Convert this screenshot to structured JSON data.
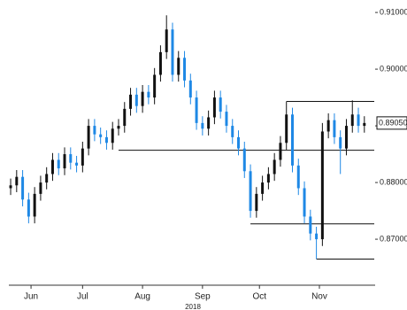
{
  "chart_data": {
    "type": "candlestick",
    "xlabel": "2018",
    "open": [
      0.879,
      0.8795,
      0.881,
      0.877,
      0.874,
      0.878,
      0.88,
      0.8815,
      0.884,
      0.8825,
      0.885,
      0.8835,
      0.883,
      0.886,
      0.89,
      0.8885,
      0.888,
      0.887,
      0.8895,
      0.89,
      0.893,
      0.8955,
      0.8935,
      0.896,
      0.895,
      0.899,
      0.903,
      0.907,
      0.899,
      0.902,
      0.898,
      0.895,
      0.8905,
      0.8895,
      0.8915,
      0.895,
      0.8925,
      0.89,
      0.888,
      0.886,
      0.882,
      0.875,
      0.878,
      0.88,
      0.8815,
      0.884,
      0.887,
      0.892,
      0.883,
      0.879,
      0.874,
      0.871,
      0.87,
      0.889,
      0.891,
      0.888,
      0.886,
      0.89,
      0.892,
      0.89
    ],
    "high": [
      0.8807,
      0.8822,
      0.8822,
      0.8782,
      0.8792,
      0.8812,
      0.8827,
      0.8852,
      0.8852,
      0.8862,
      0.8862,
      0.8847,
      0.8872,
      0.8912,
      0.8912,
      0.8897,
      0.8892,
      0.8907,
      0.8912,
      0.8942,
      0.8967,
      0.8967,
      0.8972,
      0.8972,
      0.9002,
      0.9042,
      0.9095,
      0.9082,
      0.9032,
      0.9032,
      0.8992,
      0.8962,
      0.8917,
      0.8927,
      0.8962,
      0.8962,
      0.8937,
      0.8912,
      0.8892,
      0.8872,
      0.8832,
      0.8792,
      0.8812,
      0.8827,
      0.8852,
      0.8882,
      0.8943,
      0.8932,
      0.8842,
      0.8802,
      0.8752,
      0.8722,
      0.8905,
      0.8922,
      0.8922,
      0.8892,
      0.8912,
      0.8945,
      0.8932,
      0.8917
    ],
    "low": [
      0.8778,
      0.8783,
      0.8758,
      0.8728,
      0.8728,
      0.8768,
      0.8788,
      0.8803,
      0.8813,
      0.8813,
      0.8823,
      0.8818,
      0.8818,
      0.8848,
      0.8873,
      0.8868,
      0.8858,
      0.8858,
      0.8883,
      0.8888,
      0.8918,
      0.8923,
      0.8923,
      0.8938,
      0.8938,
      0.8978,
      0.9018,
      0.8978,
      0.8978,
      0.8968,
      0.8938,
      0.8893,
      0.8883,
      0.8883,
      0.8903,
      0.8913,
      0.8888,
      0.8868,
      0.8848,
      0.8808,
      0.8738,
      0.8738,
      0.8768,
      0.8788,
      0.8803,
      0.8828,
      0.8858,
      0.8818,
      0.8778,
      0.8728,
      0.8698,
      0.8665,
      0.8688,
      0.8878,
      0.8868,
      0.8815,
      0.8848,
      0.8888,
      0.8888,
      0.8888
    ],
    "close": [
      0.8795,
      0.881,
      0.877,
      0.874,
      0.878,
      0.88,
      0.8815,
      0.884,
      0.8825,
      0.885,
      0.8835,
      0.883,
      0.886,
      0.89,
      0.8885,
      0.888,
      0.887,
      0.8895,
      0.89,
      0.893,
      0.8955,
      0.8935,
      0.896,
      0.895,
      0.899,
      0.903,
      0.907,
      0.899,
      0.902,
      0.898,
      0.895,
      0.8905,
      0.8895,
      0.8915,
      0.895,
      0.8925,
      0.89,
      0.888,
      0.886,
      0.882,
      0.875,
      0.878,
      0.88,
      0.8815,
      0.884,
      0.887,
      0.892,
      0.883,
      0.879,
      0.874,
      0.871,
      0.87,
      0.889,
      0.891,
      0.888,
      0.886,
      0.89,
      0.892,
      0.89,
      0.8905
    ],
    "up_color": "#111111",
    "down_color": "#1e88e5",
    "xlim": [
      -0.3,
      60.8
    ],
    "xticks": [
      {
        "value": 3.4,
        "label": "Jun"
      },
      {
        "value": 12,
        "label": "Jul"
      },
      {
        "value": 22,
        "label": "Aug"
      },
      {
        "value": 32,
        "label": "Sep"
      },
      {
        "value": 41.5,
        "label": "Oct"
      },
      {
        "value": 51.5,
        "label": "Nov"
      }
    ],
    "ylim": [
      0.8622,
      0.9122
    ],
    "yticks": [
      {
        "value": 0.91,
        "label": "0.91000"
      },
      {
        "value": 0.9,
        "label": "0.90000"
      },
      {
        "value": 0.89,
        "label": "0.89000"
      },
      {
        "value": 0.88,
        "label": "0.88000"
      },
      {
        "value": 0.87,
        "label": "0.87000"
      }
    ],
    "current": {
      "value": 0.8905,
      "label": "0.89050"
    },
    "levels": [
      {
        "value": 0.8857,
        "start": 18
      },
      {
        "value": 0.8943,
        "start": 46
      },
      {
        "value": 0.8727,
        "start": 40
      },
      {
        "value": 0.8665,
        "start": 51
      }
    ]
  }
}
